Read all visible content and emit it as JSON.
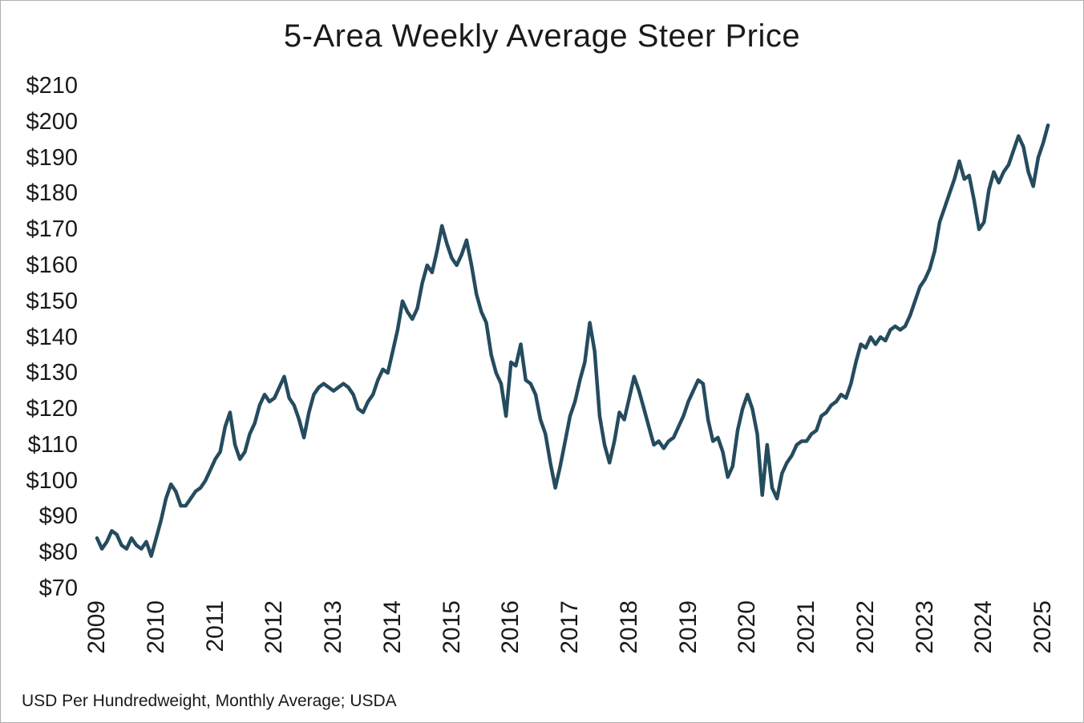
{
  "title": "5-Area Weekly Average Steer Price",
  "footer": "USD Per Hundredweight, Monthly Average; USDA",
  "chart_data": {
    "type": "line",
    "title": "5-Area Weekly Average Steer Price",
    "xlabel": "",
    "ylabel": "USD Per Hundredweight",
    "source_note": "USD Per Hundredweight, Monthly Average; USDA",
    "y_prefix": "$",
    "ylim": [
      70,
      210
    ],
    "y_ticks": [
      210,
      200,
      190,
      180,
      170,
      160,
      150,
      140,
      130,
      120,
      110,
      100,
      90,
      80,
      70
    ],
    "x_ticks": [
      2009,
      2010,
      2011,
      2012,
      2013,
      2014,
      2015,
      2016,
      2017,
      2018,
      2019,
      2020,
      2021,
      2022,
      2023,
      2024,
      2025
    ],
    "start_year": 2009,
    "points_per_year": 12,
    "grid": false,
    "legend": "none",
    "line_color": "#254b5e",
    "line_width": 4.5,
    "series_name": "5-Area Weekly Average Steer Price ($/cwt)",
    "values": [
      84,
      81,
      83,
      86,
      85,
      82,
      81,
      84,
      82,
      81,
      83,
      79,
      84,
      89,
      95,
      99,
      97,
      93,
      93,
      95,
      97,
      98,
      100,
      103,
      106,
      108,
      115,
      119,
      110,
      106,
      108,
      113,
      116,
      121,
      124,
      122,
      123,
      126,
      129,
      123,
      121,
      117,
      112,
      119,
      124,
      126,
      127,
      126,
      125,
      126,
      127,
      126,
      124,
      120,
      119,
      122,
      124,
      128,
      131,
      130,
      136,
      142,
      150,
      147,
      145,
      148,
      155,
      160,
      158,
      164,
      171,
      166,
      162,
      160,
      163,
      167,
      160,
      152,
      147,
      144,
      135,
      130,
      127,
      118,
      133,
      132,
      138,
      128,
      127,
      124,
      117,
      113,
      105,
      98,
      104,
      111,
      118,
      122,
      128,
      133,
      144,
      136,
      118,
      110,
      105,
      111,
      119,
      117,
      123,
      129,
      125,
      120,
      115,
      110,
      111,
      109,
      111,
      112,
      115,
      118,
      122,
      125,
      128,
      127,
      117,
      111,
      112,
      108,
      101,
      104,
      114,
      120,
      124,
      120,
      113,
      96,
      110,
      98,
      95,
      102,
      105,
      107,
      110,
      111,
      111,
      113,
      114,
      118,
      119,
      121,
      122,
      124,
      123,
      127,
      133,
      138,
      137,
      140,
      138,
      140,
      139,
      142,
      143,
      142,
      143,
      146,
      150,
      154,
      156,
      159,
      164,
      172,
      176,
      180,
      184,
      189,
      184,
      185,
      178,
      170,
      172,
      181,
      186,
      183,
      186,
      188,
      192,
      196,
      193,
      186,
      182,
      190,
      194,
      199
    ]
  }
}
